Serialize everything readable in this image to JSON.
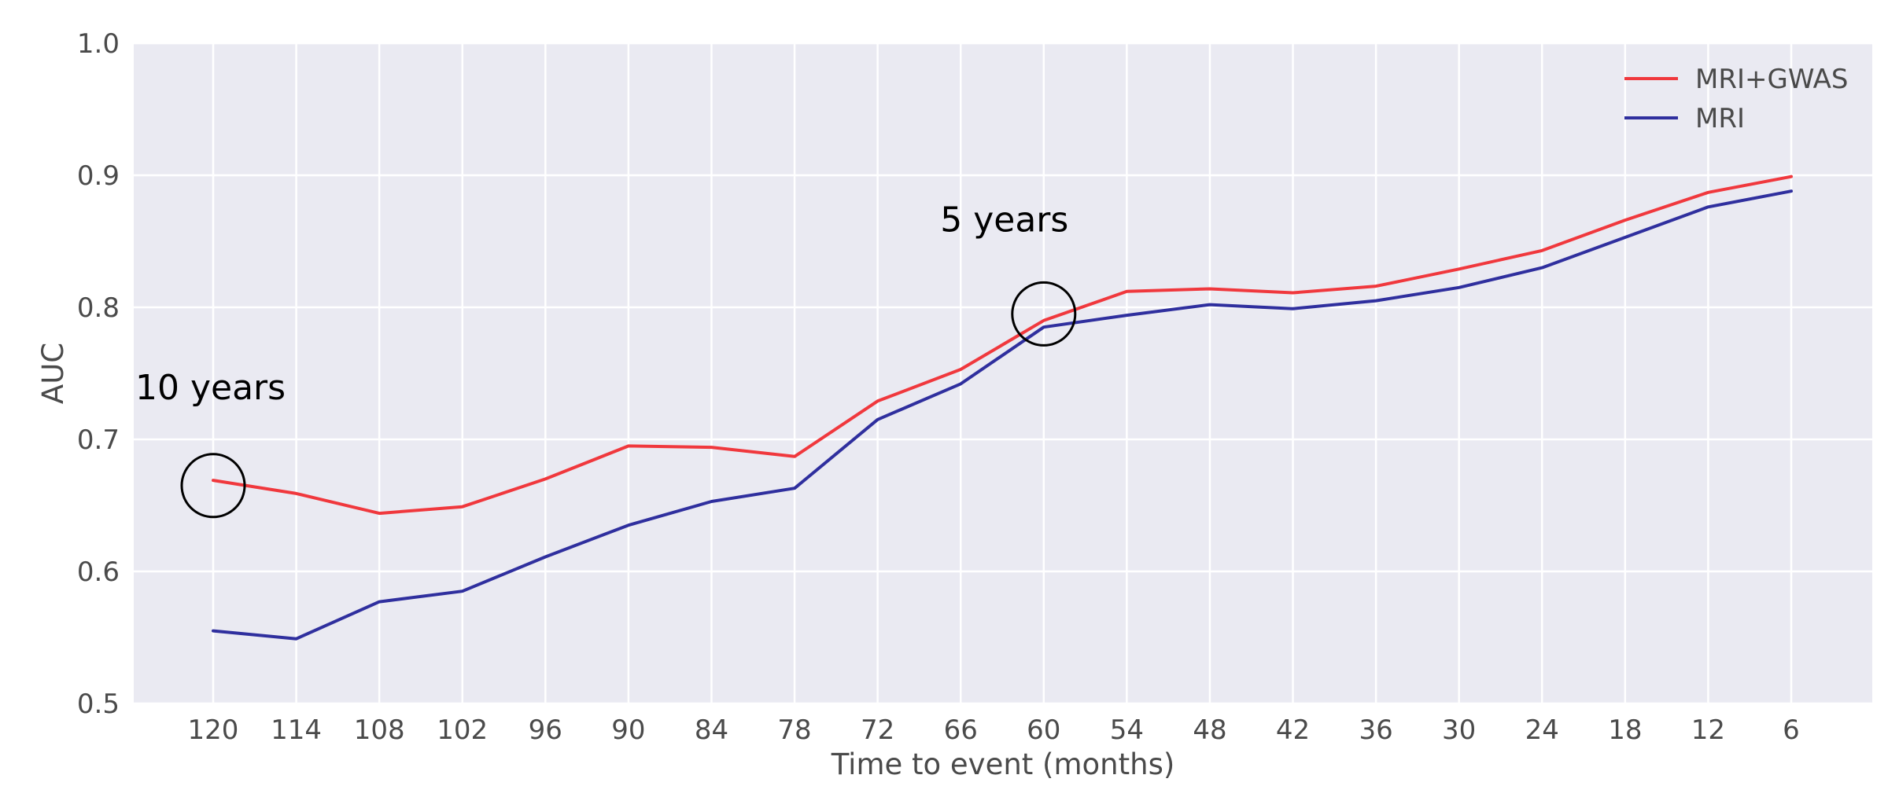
{
  "chart_data": {
    "type": "line",
    "title": "",
    "xlabel": "Time to event (months)",
    "ylabel": "AUC",
    "categories": [
      "120",
      "114",
      "108",
      "102",
      "96",
      "90",
      "84",
      "78",
      "72",
      "66",
      "60",
      "54",
      "48",
      "42",
      "36",
      "30",
      "24",
      "18",
      "12",
      "6"
    ],
    "ylim": [
      0.5,
      1.0
    ],
    "yticks": [
      "0.5",
      "0.6",
      "0.7",
      "0.8",
      "0.9",
      "1.0"
    ],
    "grid": true,
    "legend_position": "top-right",
    "series": [
      {
        "name": "MRI+GWAS",
        "color": "#f0383d",
        "values": [
          0.669,
          0.659,
          0.644,
          0.649,
          0.67,
          0.695,
          0.694,
          0.687,
          0.729,
          0.753,
          0.79,
          0.812,
          0.814,
          0.811,
          0.816,
          0.829,
          0.843,
          0.866,
          0.887,
          0.899
        ]
      },
      {
        "name": "MRI",
        "color": "#2f2f9e",
        "values": [
          0.555,
          0.549,
          0.577,
          0.585,
          0.611,
          0.635,
          0.653,
          0.663,
          0.715,
          0.742,
          0.785,
          0.794,
          0.802,
          0.799,
          0.805,
          0.815,
          0.83,
          0.853,
          0.876,
          0.888
        ]
      }
    ],
    "annotations": [
      {
        "text": "10 years",
        "category": "120",
        "y": 0.665
      },
      {
        "text": "5 years",
        "category": "60",
        "y": 0.795
      }
    ]
  }
}
